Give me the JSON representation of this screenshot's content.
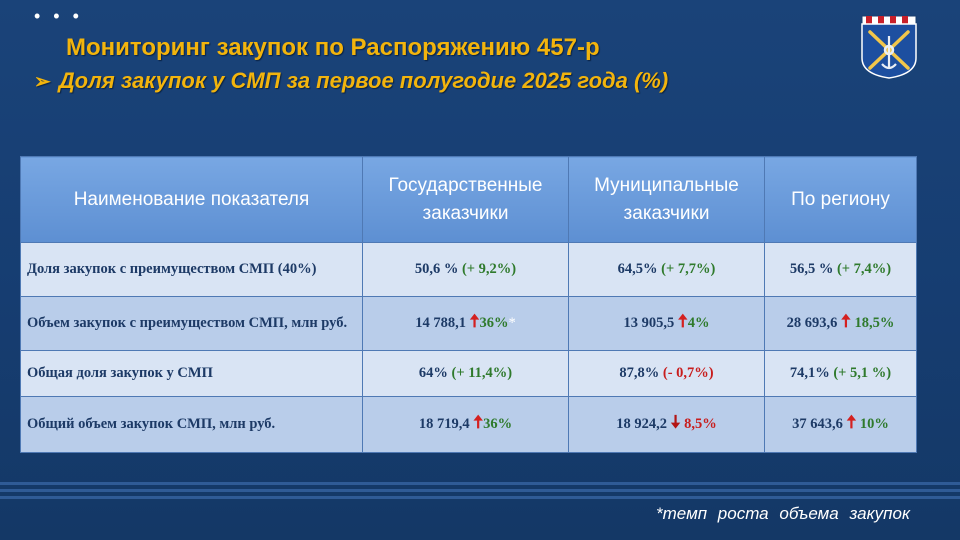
{
  "title": "Мониторинг закупок по Распоряжению 457-р",
  "subtitle": "Доля закупок у СМП за первое полугодие 2025 года (%)",
  "subtitle_marker": "➢",
  "dots": "• • •",
  "emblem_icon": "leningrad-oblast-coat-of-arms-icon",
  "colors": {
    "title": "#f2b40d",
    "background": "#163d71",
    "up_arrow": "#d42020",
    "positive": "#2f7a2c",
    "negative": "#c81d1d"
  },
  "table": {
    "headers": [
      "Наименование показателя",
      "Государственные заказчики",
      "Муниципальные заказчики",
      "По региону"
    ],
    "rows": [
      {
        "label": "Доля закупок с преимуществом СМП (40%)",
        "gov": {
          "value": "50,6 %",
          "change": "(+ 9,2%)"
        },
        "mun": {
          "value": "64,5%",
          "change": "(+ 7,7%)"
        },
        "reg": {
          "value": "56,5 %",
          "change": "(+ 7,4%)"
        }
      },
      {
        "label": "Объем закупок с преимуществом СМП, млн руб.",
        "gov": {
          "value": "14 788,1",
          "arrow": "up",
          "pct": "36%",
          "note": "*"
        },
        "mun": {
          "value": "13 905,5",
          "arrow": "up",
          "pct": "4%"
        },
        "reg": {
          "value": "28 693,6",
          "arrow": "up",
          "pct": "18,5%"
        }
      },
      {
        "label": "Общая доля закупок у СМП",
        "gov": {
          "value": "64%",
          "change": "(+ 11,4%)"
        },
        "mun": {
          "value": "87,8%",
          "change": "(- 0,7%)"
        },
        "reg": {
          "value": "74,1%",
          "change": "(+ 5,1 %)"
        }
      },
      {
        "label": "Общий объем закупок СМП, млн руб.",
        "gov": {
          "value": "18 719,4",
          "arrow": "up",
          "pct": "36%"
        },
        "mun": {
          "value": "18 924,2",
          "arrow": "down",
          "pct": "8,5%"
        },
        "reg": {
          "value": "37 643,6",
          "arrow": "up",
          "pct": "10%"
        }
      }
    ]
  },
  "footnote": "*темп роста объема закупок"
}
